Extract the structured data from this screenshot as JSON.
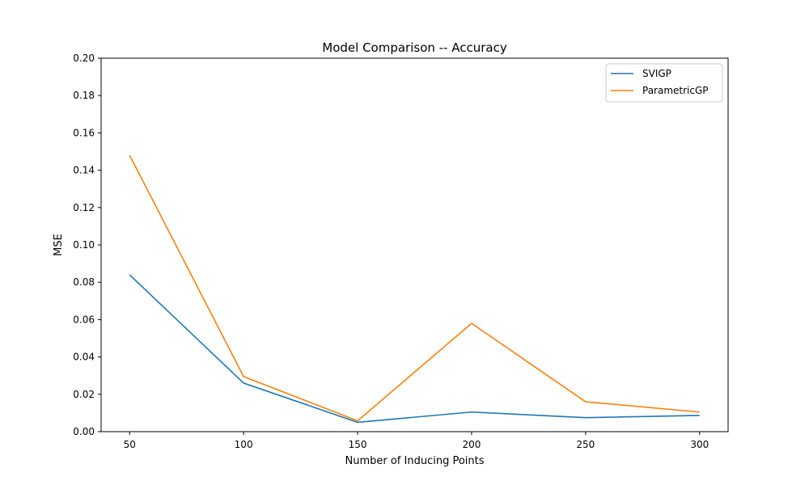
{
  "chart_data": {
    "type": "line",
    "title": "Model Comparison -- Accuracy",
    "xlabel": "Number of Inducing Points",
    "ylabel": "MSE",
    "x": [
      50,
      100,
      150,
      200,
      250,
      300
    ],
    "xticks": [
      "50",
      "100",
      "150",
      "200",
      "250",
      "300"
    ],
    "yticks": [
      "0.00",
      "0.02",
      "0.04",
      "0.06",
      "0.08",
      "0.10",
      "0.12",
      "0.14",
      "0.16",
      "0.18",
      "0.20"
    ],
    "xlim": [
      37.5,
      312.5
    ],
    "ylim": [
      0,
      0.2
    ],
    "grid": false,
    "legend_position": "top-right",
    "series": [
      {
        "name": "SVIGP",
        "color": "#1f77b4",
        "values": [
          0.084,
          0.026,
          0.005,
          0.0105,
          0.0075,
          0.0087
        ]
      },
      {
        "name": "ParametricGP",
        "color": "#ff7f0e",
        "values": [
          0.148,
          0.0295,
          0.0058,
          0.058,
          0.016,
          0.0105
        ]
      }
    ]
  }
}
